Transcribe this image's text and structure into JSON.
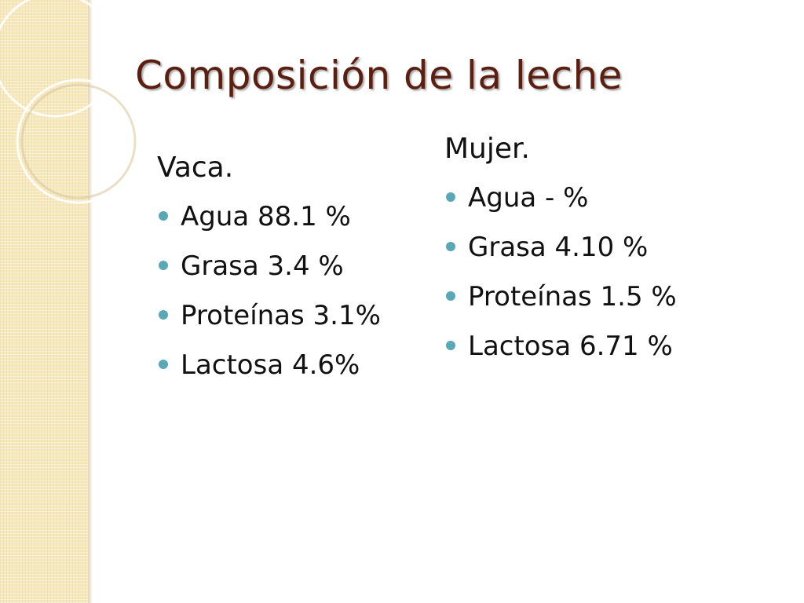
{
  "slide": {
    "title": "Composición de la leche",
    "colors": {
      "title": "#5a1f10",
      "text": "#111111",
      "bullet": "#5aa7b6",
      "side_band": "#f6e8bf"
    },
    "columns": [
      {
        "heading": "Vaca.",
        "items": [
          "Agua 88.1 %",
          "Grasa 3.4 %",
          "Proteínas 3.1%",
          "Lactosa 4.6%"
        ]
      },
      {
        "heading": "Mujer.",
        "items": [
          "Agua - %",
          "Grasa 4.10 %",
          "Proteínas 1.5 %",
          "Lactosa 6.71 %"
        ]
      }
    ]
  }
}
